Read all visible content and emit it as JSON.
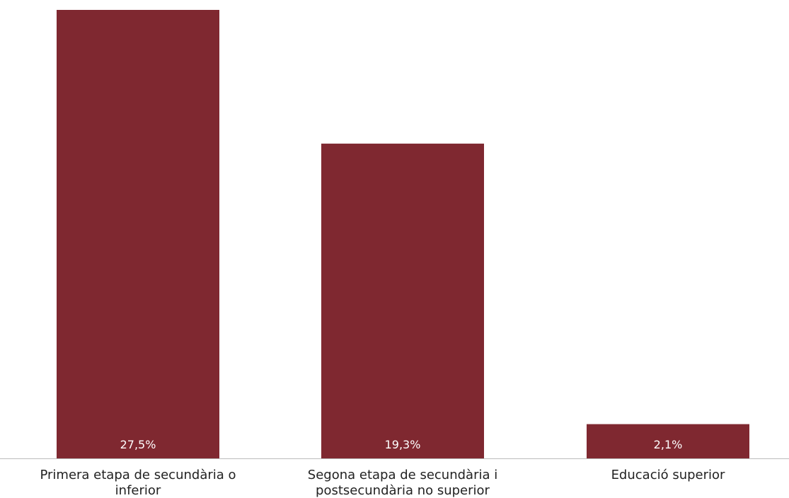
{
  "chart_data": {
    "type": "bar",
    "categories": [
      [
        "Primera etapa de secundària o",
        "inferior"
      ],
      [
        "Segona etapa de secundària i",
        "postsecundària no superior"
      ],
      [
        "Educació superior"
      ]
    ],
    "values": [
      27.5,
      19.3,
      2.1
    ],
    "value_labels": [
      "27,5%",
      "19,3%",
      "2,1%"
    ],
    "title": "",
    "xlabel": "",
    "ylabel": "",
    "ylim": [
      0,
      27.5
    ],
    "grid": false,
    "legend": "none",
    "colors": {
      "bar": "#7f2830",
      "baseline": "#bbbbbb",
      "category_text": "#222222",
      "value_text": "#ffffff"
    }
  }
}
